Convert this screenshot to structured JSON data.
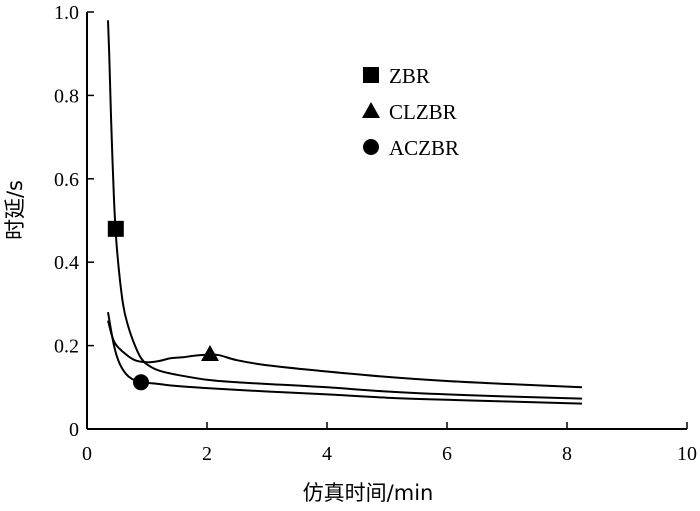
{
  "chart_data": {
    "type": "line",
    "xlabel": "仿真时间/min",
    "ylabel": "时延/s",
    "xlim": [
      0,
      10
    ],
    "ylim": [
      0,
      1.0
    ],
    "x_ticks": [
      0,
      2,
      4,
      6,
      8,
      10
    ],
    "y_ticks": [
      0,
      0.2,
      0.4,
      0.6,
      0.8,
      1.0
    ],
    "x_tick_labels": [
      "0",
      "2",
      "4",
      "6",
      "8",
      "10"
    ],
    "y_tick_labels": [
      "0",
      "0.2",
      "0.4",
      "0.6",
      "0.8",
      "1.0"
    ],
    "grid": false,
    "legend_position": "top-right",
    "line_color": "#000000",
    "series": [
      {
        "name": "ZBR",
        "marker": "square",
        "marker_point": [
          0.48,
          0.48
        ],
        "x": [
          0.35,
          0.37,
          0.4,
          0.45,
          0.5,
          0.6,
          0.7,
          0.8,
          0.9,
          1.0,
          1.2,
          1.5,
          2.0,
          2.5,
          3.0,
          4.0,
          5.0,
          6.0,
          7.0,
          8.25
        ],
        "y": [
          0.98,
          0.9,
          0.75,
          0.55,
          0.43,
          0.3,
          0.24,
          0.2,
          0.17,
          0.155,
          0.14,
          0.13,
          0.118,
          0.112,
          0.108,
          0.1,
          0.09,
          0.083,
          0.078,
          0.073
        ]
      },
      {
        "name": "CLZBR",
        "marker": "triangle",
        "marker_point": [
          2.05,
          0.18
        ],
        "x": [
          0.35,
          0.45,
          0.6,
          0.8,
          1.0,
          1.2,
          1.4,
          1.6,
          1.8,
          2.0,
          2.2,
          2.5,
          3.0,
          4.0,
          5.0,
          6.0,
          7.0,
          8.25
        ],
        "y": [
          0.26,
          0.21,
          0.185,
          0.165,
          0.16,
          0.163,
          0.17,
          0.172,
          0.176,
          0.178,
          0.177,
          0.165,
          0.153,
          0.138,
          0.125,
          0.115,
          0.108,
          0.1
        ]
      },
      {
        "name": "ACZBR",
        "marker": "circle",
        "marker_point": [
          0.9,
          0.112
        ],
        "x": [
          0.35,
          0.45,
          0.55,
          0.7,
          0.9,
          1.2,
          1.5,
          2.0,
          3.0,
          4.0,
          5.0,
          6.0,
          7.0,
          8.25
        ],
        "y": [
          0.28,
          0.2,
          0.155,
          0.125,
          0.113,
          0.108,
          0.103,
          0.098,
          0.09,
          0.083,
          0.075,
          0.07,
          0.066,
          0.061
        ]
      }
    ]
  }
}
